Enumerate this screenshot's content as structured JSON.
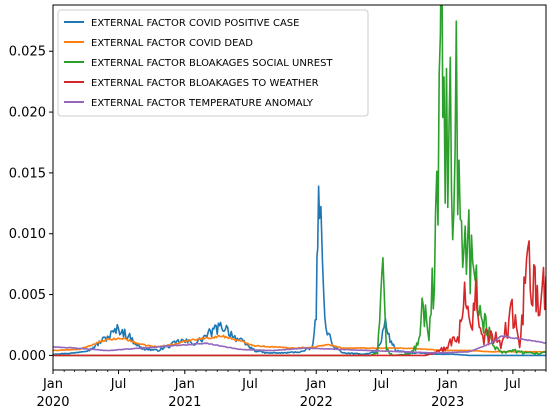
{
  "chart_data": {
    "type": "line",
    "title": "",
    "xlabel": "",
    "ylabel": "",
    "xlim": [
      "2020-01-01",
      "2023-10-01"
    ],
    "ylim": [
      -0.0012,
      0.0288
    ],
    "grid": false,
    "legend_position": "upper-left",
    "y_ticks": [
      "0.000",
      "0.005",
      "0.010",
      "0.015",
      "0.020",
      "0.025"
    ],
    "x_ticks": [
      {
        "date": "2020-01-01",
        "major": "Jan",
        "minor": "2020"
      },
      {
        "date": "2020-07-01",
        "major": "Jul",
        "minor": ""
      },
      {
        "date": "2021-01-01",
        "major": "Jan",
        "minor": "2021"
      },
      {
        "date": "2021-07-01",
        "major": "Jul",
        "minor": ""
      },
      {
        "date": "2022-01-01",
        "major": "Jan",
        "minor": "2022"
      },
      {
        "date": "2022-07-01",
        "major": "Jul",
        "minor": ""
      },
      {
        "date": "2023-01-01",
        "major": "Jan",
        "minor": "2023"
      },
      {
        "date": "2023-07-01",
        "major": "Jul",
        "minor": ""
      }
    ],
    "series": [
      {
        "name": "EXTERNAL FACTOR COVID POSITIVE CASE",
        "color": "#1f77b4",
        "x": [
          "2020-01-01",
          "2020-03-01",
          "2020-04-15",
          "2020-05-15",
          "2020-06-10",
          "2020-07-01",
          "2020-08-01",
          "2020-09-01",
          "2020-10-15",
          "2020-11-20",
          "2020-12-20",
          "2021-02-01",
          "2021-03-10",
          "2021-04-01",
          "2021-04-20",
          "2021-05-20",
          "2021-06-15",
          "2021-07-15",
          "2021-08-15",
          "2021-10-01",
          "2021-11-20",
          "2021-12-20",
          "2022-01-01",
          "2022-01-05",
          "2022-01-10",
          "2022-01-18",
          "2022-01-28",
          "2022-02-15",
          "2022-03-15",
          "2022-05-15",
          "2022-06-15",
          "2022-07-01",
          "2022-07-12",
          "2022-07-22",
          "2022-08-10",
          "2022-09-15",
          "2022-10-15",
          "2022-11-15",
          "2022-12-15",
          "2023-01-15",
          "2023-03-01",
          "2023-05-01",
          "2023-07-01",
          "2023-10-01"
        ],
        "y": [
          0.0001,
          0.0002,
          0.0005,
          0.0012,
          0.0017,
          0.0022,
          0.0015,
          0.0006,
          0.0004,
          0.0008,
          0.0012,
          0.001,
          0.0018,
          0.0022,
          0.0024,
          0.0015,
          0.001,
          0.0004,
          0.0002,
          0.0002,
          0.0003,
          0.0006,
          0.003,
          0.011,
          0.0132,
          0.007,
          0.0025,
          0.0008,
          0.0002,
          0.0001,
          0.0003,
          0.0012,
          0.003,
          0.0015,
          0.0004,
          0.0002,
          0.0002,
          0.0001,
          0.0001,
          0.0001,
          0.0,
          0.0,
          0.0,
          0.0
        ]
      },
      {
        "name": "EXTERNAL FACTOR COVID DEAD",
        "color": "#ff7f0e",
        "x": [
          "2020-01-01",
          "2020-03-15",
          "2020-05-01",
          "2020-06-01",
          "2020-07-15",
          "2020-09-01",
          "2020-10-15",
          "2020-12-01",
          "2021-01-20",
          "2021-03-01",
          "2021-04-15",
          "2021-06-01",
          "2021-07-15",
          "2021-09-01",
          "2021-11-01",
          "2022-01-01",
          "2022-02-01",
          "2022-03-15",
          "2022-05-01",
          "2022-07-01",
          "2022-09-01",
          "2022-11-01",
          "2023-01-01",
          "2023-03-01",
          "2023-05-01",
          "2023-07-01",
          "2023-10-01"
        ],
        "y": [
          0.0004,
          0.0005,
          0.001,
          0.0013,
          0.0014,
          0.0009,
          0.0007,
          0.0009,
          0.0013,
          0.0014,
          0.0016,
          0.0012,
          0.0008,
          0.0007,
          0.0006,
          0.0007,
          0.0009,
          0.0006,
          0.0006,
          0.0006,
          0.0006,
          0.0005,
          0.0004,
          0.0004,
          0.0003,
          0.0003,
          0.0003
        ]
      },
      {
        "name": "EXTERNAL FACTOR BLOAKAGES SOCIAL UNREST",
        "color": "#2ca02c",
        "x": [
          "2020-01-01",
          "2022-06-01",
          "2022-06-20",
          "2022-07-05",
          "2022-07-15",
          "2022-08-01",
          "2022-09-15",
          "2022-10-10",
          "2022-10-25",
          "2022-11-10",
          "2022-11-25",
          "2022-12-05",
          "2022-12-15",
          "2022-12-25",
          "2023-01-05",
          "2023-01-15",
          "2023-01-25",
          "2023-02-05",
          "2023-02-15",
          "2023-03-01",
          "2023-03-15",
          "2023-04-01",
          "2023-04-20",
          "2023-05-10",
          "2023-06-01",
          "2023-07-01",
          "2023-08-01",
          "2023-10-01"
        ],
        "y": [
          0.0,
          0.0,
          0.0002,
          0.006,
          0.0005,
          0.0,
          0.0001,
          0.0008,
          0.0042,
          0.001,
          0.008,
          0.012,
          0.028,
          0.015,
          0.0235,
          0.016,
          0.02,
          0.011,
          0.013,
          0.01,
          0.006,
          0.004,
          0.002,
          0.0008,
          0.0003,
          0.0004,
          0.0002,
          0.0002
        ]
      },
      {
        "name": "EXTERNAL FACTOR BLOAKAGES TO WEATHER",
        "color": "#d62728",
        "x": [
          "2020-01-01",
          "2022-11-01",
          "2023-01-01",
          "2023-02-01",
          "2023-02-20",
          "2023-03-01",
          "2023-03-20",
          "2023-04-05",
          "2023-05-01",
          "2023-06-01",
          "2023-06-20",
          "2023-07-05",
          "2023-07-20",
          "2023-08-01",
          "2023-08-15",
          "2023-08-25",
          "2023-09-10",
          "2023-10-01"
        ],
        "y": [
          0.0,
          0.0,
          0.0006,
          0.002,
          0.0055,
          0.003,
          0.0045,
          0.0012,
          0.0018,
          0.0008,
          0.003,
          0.0035,
          0.0005,
          0.0045,
          0.0082,
          0.006,
          0.0035,
          0.0065
        ]
      },
      {
        "name": "EXTERNAL FACTOR TEMPERATURE ANOMALY",
        "color": "#9467bd",
        "x": [
          "2020-01-01",
          "2020-03-01",
          "2020-06-01",
          "2020-09-01",
          "2020-12-01",
          "2021-03-01",
          "2021-06-01",
          "2021-09-01",
          "2021-12-01",
          "2022-03-01",
          "2022-06-01",
          "2022-09-01",
          "2022-12-01",
          "2023-03-01",
          "2023-05-01",
          "2023-06-01",
          "2023-08-01",
          "2023-10-01"
        ],
        "y": [
          0.0007,
          0.0006,
          0.0004,
          0.0006,
          0.0008,
          0.001,
          0.0005,
          0.0004,
          0.0006,
          0.0005,
          0.0004,
          0.0003,
          0.0002,
          0.0003,
          0.001,
          0.0016,
          0.0013,
          0.001
        ]
      }
    ]
  }
}
